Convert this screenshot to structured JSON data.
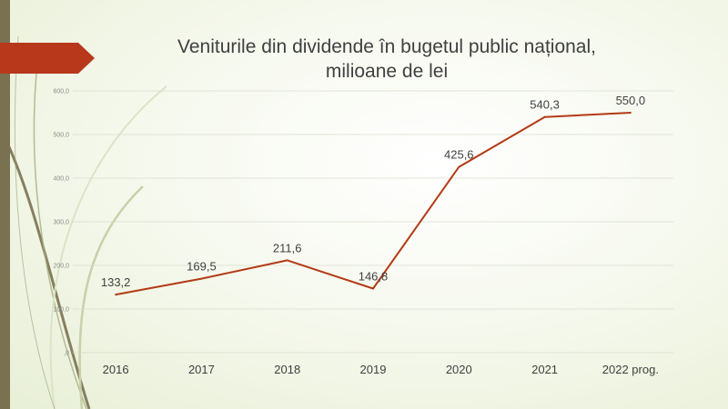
{
  "slide": {
    "title_line1": "Veniturile din dividende în bugetul public național,",
    "title_line2": "milioane de lei"
  },
  "colors": {
    "line": "#b23a14",
    "arrow": "#b7381b",
    "sidebar": "#7a7150",
    "grid": "#d9dccf",
    "text": "#404040"
  },
  "chart_data": {
    "type": "line",
    "title": "Veniturile din dividende în bugetul public național, milioane de lei",
    "categories": [
      "2016",
      "2017",
      "2018",
      "2019",
      "2020",
      "2021",
      "2022 prog."
    ],
    "series": [
      {
        "values": [
          133.2,
          169.5,
          211.6,
          146.8,
          425.6,
          540.3,
          550.0
        ]
      }
    ],
    "data_labels": [
      "133,2",
      "169,5",
      "211,6",
      "146,8",
      "425,6",
      "540,3",
      "550,0"
    ],
    "yticks": [
      "600,0",
      "500,0",
      "400,0",
      "300,0",
      "200,0",
      "100,0",
      ",0"
    ],
    "ylim": [
      0,
      600
    ],
    "grid": true,
    "legend": "none"
  }
}
